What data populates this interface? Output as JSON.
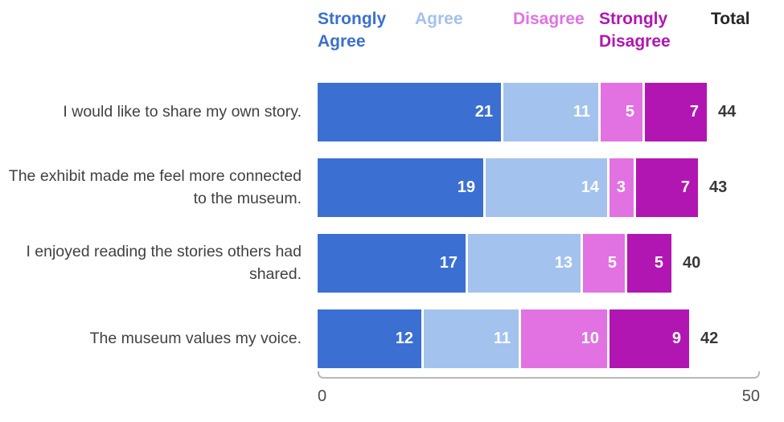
{
  "chart_data": {
    "type": "bar",
    "stacked": true,
    "orientation": "horizontal",
    "title": "",
    "categories": [
      "I would like to share my own story.",
      "The exhibit made me feel more connected to the museum.",
      "I enjoyed reading the stories others had shared.",
      "The museum values my voice."
    ],
    "series": [
      {
        "name": "Strongly Agree",
        "color": "#3b6fd2",
        "values": [
          21,
          19,
          17,
          12
        ]
      },
      {
        "name": "Agree",
        "color": "#a3c2ee",
        "values": [
          11,
          14,
          13,
          11
        ]
      },
      {
        "name": "Disagree",
        "color": "#e272e2",
        "values": [
          5,
          3,
          5,
          10
        ]
      },
      {
        "name": "Strongly Disagree",
        "color": "#b216b2",
        "values": [
          7,
          7,
          5,
          9
        ]
      }
    ],
    "totals": [
      44,
      43,
      40,
      42
    ],
    "total_label": "Total",
    "xlabel": "",
    "ylabel": "",
    "xlim": [
      0,
      50
    ],
    "x_ticks": [
      "0",
      "50"
    ],
    "grid": false,
    "legend_position": "top",
    "value_labels": "inside-right, white bold",
    "colors": {
      "total_header": "#262626",
      "category_label": "#414141",
      "total_value": "#383838",
      "axis": "#b8b8b8",
      "tick_label": "#4d4d4d"
    }
  }
}
